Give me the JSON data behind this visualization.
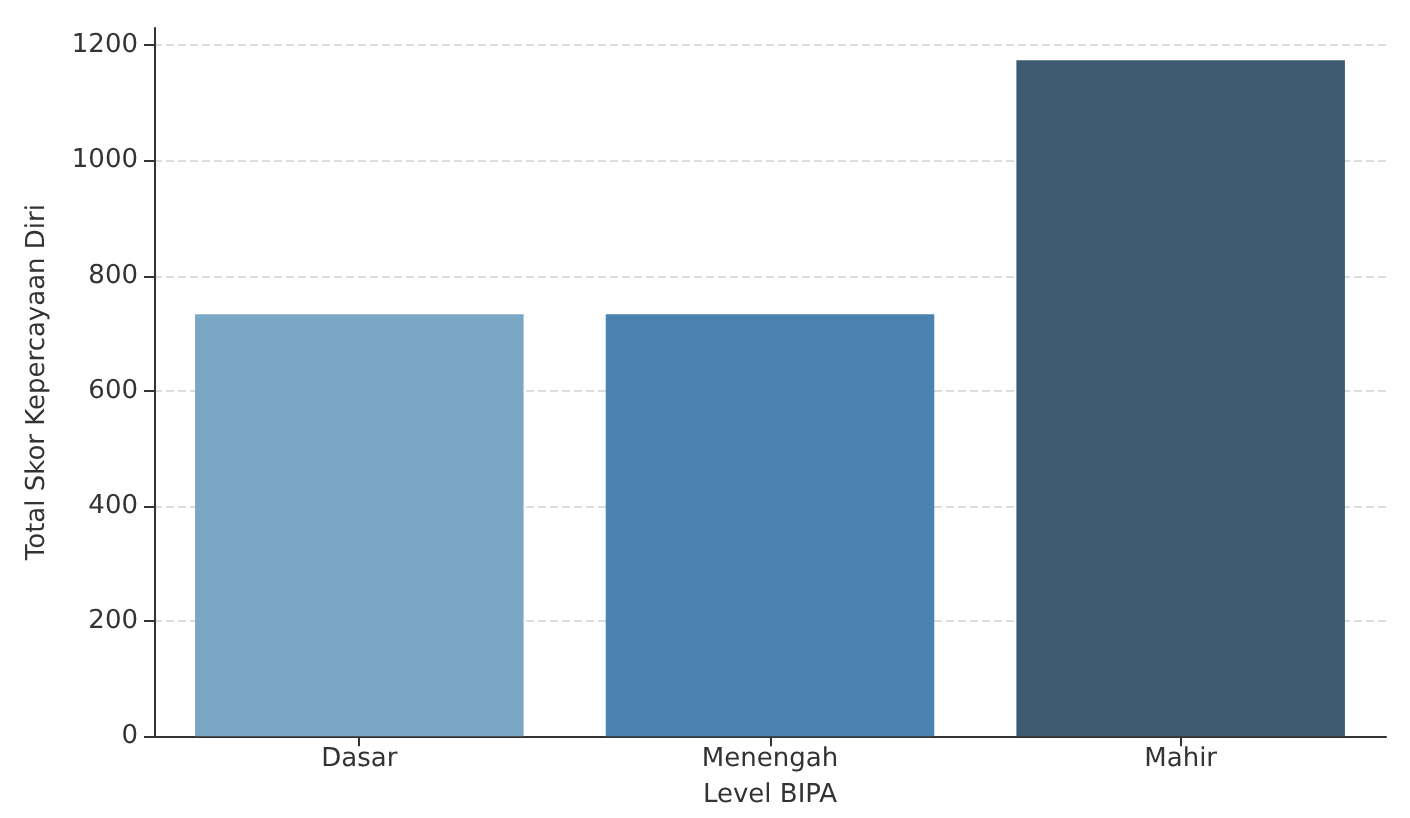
{
  "chart_data": {
    "type": "bar",
    "xlabel": "Level BIPA",
    "ylabel": "Total Skor Kepercayaan Diri",
    "categories": [
      "Dasar",
      "Menengah",
      "Mahir"
    ],
    "values": [
      733,
      733,
      1174
    ],
    "colors": [
      "#7ba7c7",
      "#4a83b0",
      "#3d5b72"
    ],
    "ylim": [
      0,
      1230
    ],
    "yticks": [
      0,
      200,
      400,
      600,
      800,
      1000,
      1200
    ],
    "grid": "y"
  }
}
